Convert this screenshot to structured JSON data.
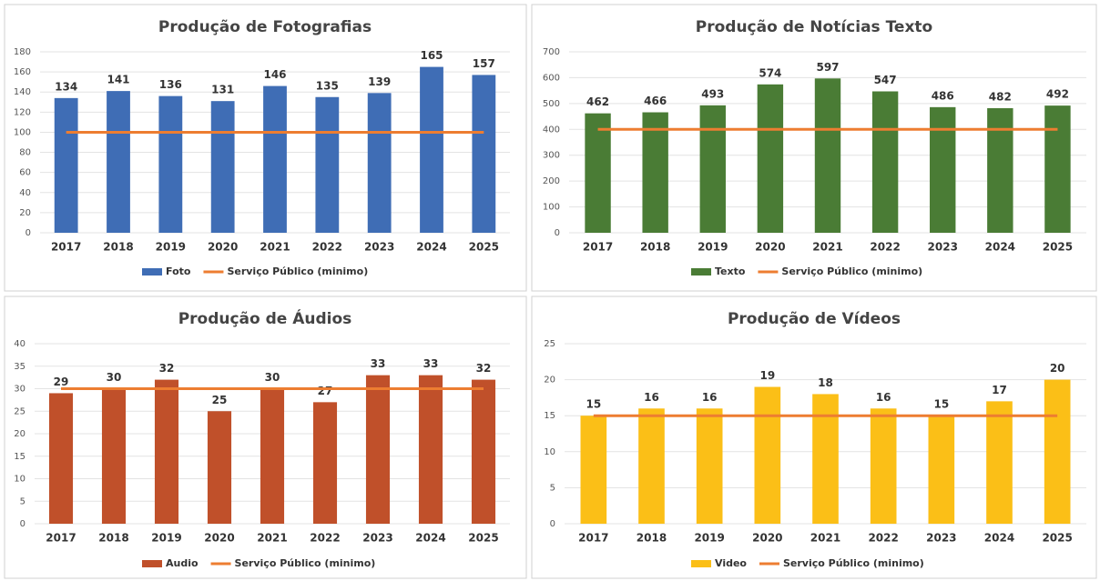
{
  "chart_data": [
    {
      "type": "bar",
      "title": "Produção de Fotografias",
      "categories": [
        "2017",
        "2018",
        "2019",
        "2020",
        "2021",
        "2022",
        "2023",
        "2024",
        "2025"
      ],
      "series": [
        {
          "name": "Foto",
          "color": "#3f6db5",
          "type": "bar",
          "values": [
            134,
            141,
            136,
            131,
            146,
            135,
            139,
            165,
            157
          ]
        },
        {
          "name": "Serviço Público (minimo)",
          "color": "#ed7d31",
          "type": "line",
          "values": [
            100,
            100,
            100,
            100,
            100,
            100,
            100,
            100,
            100
          ]
        }
      ],
      "ylim": [
        0,
        180
      ],
      "yticks": [
        0,
        20,
        40,
        60,
        80,
        100,
        120,
        140,
        160,
        180
      ],
      "grid": true
    },
    {
      "type": "bar",
      "title": "Produção de Notícias Texto",
      "categories": [
        "2017",
        "2018",
        "2019",
        "2020",
        "2021",
        "2022",
        "2023",
        "2024",
        "2025"
      ],
      "series": [
        {
          "name": "Texto",
          "color": "#4a7c35",
          "type": "bar",
          "values": [
            462,
            466,
            493,
            574,
            597,
            547,
            486,
            482,
            492
          ]
        },
        {
          "name": "Serviço Público (minimo)",
          "color": "#ed7d31",
          "type": "line",
          "values": [
            400,
            400,
            400,
            400,
            400,
            400,
            400,
            400,
            400
          ]
        }
      ],
      "ylim": [
        0,
        700
      ],
      "yticks": [
        0,
        100,
        200,
        300,
        400,
        500,
        600,
        700
      ],
      "grid": true
    },
    {
      "type": "bar",
      "title": "Produção de Áudios",
      "categories": [
        "2017",
        "2018",
        "2019",
        "2020",
        "2021",
        "2022",
        "2023",
        "2024",
        "2025"
      ],
      "series": [
        {
          "name": "Audio",
          "color": "#c0502a",
          "type": "bar",
          "values": [
            29,
            30,
            32,
            25,
            30,
            27,
            33,
            33,
            32
          ]
        },
        {
          "name": "Serviço Público (minimo)",
          "color": "#ed7d31",
          "type": "line",
          "values": [
            30,
            30,
            30,
            30,
            30,
            30,
            30,
            30,
            30
          ]
        }
      ],
      "ylim": [
        0,
        40
      ],
      "yticks": [
        0,
        5,
        10,
        15,
        20,
        25,
        30,
        35,
        40
      ],
      "grid": true
    },
    {
      "type": "bar",
      "title": "Produção de Vídeos",
      "categories": [
        "2017",
        "2018",
        "2019",
        "2020",
        "2021",
        "2022",
        "2023",
        "2024",
        "2025"
      ],
      "series": [
        {
          "name": "Video",
          "color": "#fbbf17",
          "type": "bar",
          "values": [
            15,
            16,
            16,
            19,
            18,
            16,
            15,
            17,
            20
          ]
        },
        {
          "name": "Serviço Público (minimo)",
          "color": "#ed7d31",
          "type": "line",
          "values": [
            15,
            15,
            15,
            15,
            15,
            15,
            15,
            15,
            15
          ]
        }
      ],
      "ylim": [
        0,
        25
      ],
      "yticks": [
        0,
        5,
        10,
        15,
        20,
        25
      ],
      "grid": true
    }
  ]
}
